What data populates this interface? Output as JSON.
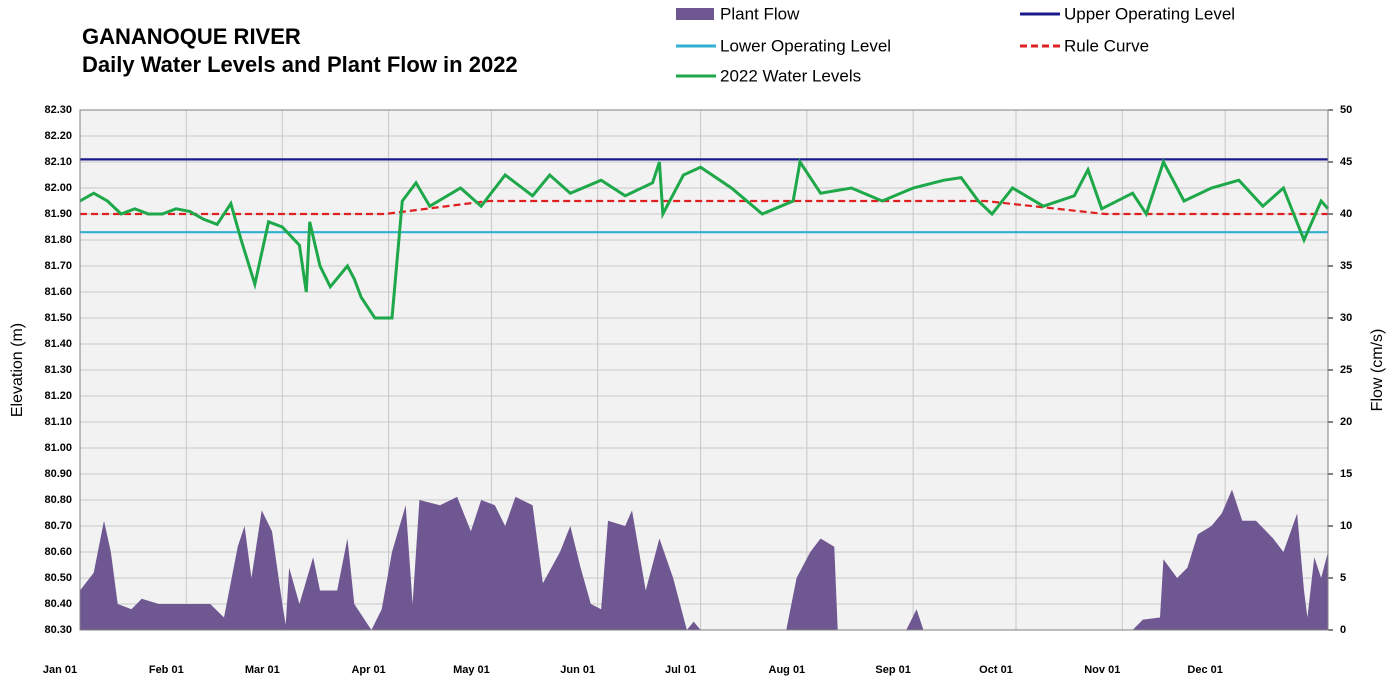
{
  "chart_data": {
    "type": "line",
    "title": "GANANOQUE RIVER",
    "subtitle": "Daily Water Levels and Plant Flow in 2022",
    "y_label": "Elevation (m)",
    "y2_label": "Flow (cm/s)",
    "xlim": [
      1,
      365
    ],
    "xticks": [
      {
        "value": 1,
        "label": "Jan 01"
      },
      {
        "value": 32,
        "label": "Feb 01"
      },
      {
        "value": 60,
        "label": "Mar 01"
      },
      {
        "value": 91,
        "label": "Apr 01"
      },
      {
        "value": 121,
        "label": "May 01"
      },
      {
        "value": 152,
        "label": "Jun 01"
      },
      {
        "value": 182,
        "label": "Jul 01"
      },
      {
        "value": 213,
        "label": "Aug 01"
      },
      {
        "value": 244,
        "label": "Sep 01"
      },
      {
        "value": 274,
        "label": "Oct 01"
      },
      {
        "value": 305,
        "label": "Nov 01"
      },
      {
        "value": 335,
        "label": "Dec 01"
      }
    ],
    "ylim": [
      80.3,
      82.3
    ],
    "yticks": [
      {
        "value": 80.3,
        "label": "80.30"
      },
      {
        "value": 80.4,
        "label": "80.40"
      },
      {
        "value": 80.5,
        "label": "80.50"
      },
      {
        "value": 80.6,
        "label": "80.60"
      },
      {
        "value": 80.7,
        "label": "80.70"
      },
      {
        "value": 80.8,
        "label": "80.80"
      },
      {
        "value": 80.9,
        "label": "80.90"
      },
      {
        "value": 81.0,
        "label": "81.00"
      },
      {
        "value": 81.1,
        "label": "81.10"
      },
      {
        "value": 81.2,
        "label": "81.20"
      },
      {
        "value": 81.3,
        "label": "81.30"
      },
      {
        "value": 81.4,
        "label": "81.40"
      },
      {
        "value": 81.5,
        "label": "81.50"
      },
      {
        "value": 81.6,
        "label": "81.60"
      },
      {
        "value": 81.7,
        "label": "81.70"
      },
      {
        "value": 81.8,
        "label": "81.80"
      },
      {
        "value": 81.9,
        "label": "81.90"
      },
      {
        "value": 82.0,
        "label": "82.00"
      },
      {
        "value": 82.1,
        "label": "82.10"
      },
      {
        "value": 82.2,
        "label": "82.20"
      },
      {
        "value": 82.3,
        "label": "82.30"
      }
    ],
    "y2lim": [
      0,
      50
    ],
    "y2ticks": [
      0,
      5,
      10,
      15,
      20,
      25,
      30,
      35,
      40,
      45,
      50
    ],
    "grid": true,
    "series": [
      {
        "name": "Plant Flow",
        "color": "#6f5792",
        "type": "area",
        "axis": "y2",
        "x": [
          1,
          5,
          8,
          10,
          12,
          16,
          19,
          24,
          39,
          43,
          47,
          49,
          51,
          54,
          57,
          60,
          61,
          62,
          65,
          69,
          71,
          76,
          79,
          81,
          86,
          89,
          92,
          96,
          98,
          100,
          106,
          111,
          115,
          118,
          122,
          125,
          128,
          133,
          136,
          141,
          144,
          147,
          150,
          153,
          155,
          160,
          162,
          166,
          170,
          174,
          178,
          180,
          182,
          207,
          210,
          214,
          217,
          221,
          222,
          242,
          245,
          247,
          308,
          311,
          316,
          317,
          321,
          324,
          327,
          331,
          334,
          337,
          340,
          344,
          349,
          352,
          356,
          358,
          359,
          361,
          363,
          365
        ],
        "values": [
          3.8,
          5.5,
          10.5,
          7.5,
          2.5,
          2,
          3,
          2.5,
          2.5,
          1.2,
          8,
          10,
          5,
          11.5,
          9.5,
          2.5,
          0.5,
          6,
          2.5,
          7,
          3.8,
          3.8,
          8.8,
          2.5,
          0,
          2,
          7.5,
          12,
          2.5,
          12.5,
          12,
          12.8,
          9.5,
          12.5,
          12,
          10,
          12.8,
          12,
          4.5,
          7.5,
          10,
          6,
          2.5,
          2,
          10.5,
          10,
          11.5,
          3.8,
          8.8,
          5,
          0,
          0.8,
          0,
          0,
          5,
          7.5,
          8.8,
          8,
          0,
          0,
          2,
          0,
          0,
          1,
          1.2,
          6.8,
          5,
          6,
          9.2,
          10,
          11.2,
          13.5,
          10.5,
          10.5,
          8.8,
          7.5,
          11.2,
          3.8,
          1.2,
          7,
          5,
          7.5
        ]
      },
      {
        "name": "Upper Operating Level",
        "color": "#1a1a8c",
        "x": [
          1,
          365
        ],
        "values": [
          82.11,
          82.11
        ]
      },
      {
        "name": "Lower Operating Level",
        "color": "#2fb0d0",
        "x": [
          1,
          365
        ],
        "values": [
          81.83,
          81.83
        ]
      },
      {
        "name": "Rule Curve",
        "color": "#e02020",
        "style": "dashed",
        "x": [
          1,
          90,
          120,
          265,
          300,
          365
        ],
        "values": [
          81.9,
          81.9,
          81.95,
          81.95,
          81.9,
          81.9
        ]
      },
      {
        "name": "2022 Water Levels",
        "color": "#1ea84a",
        "x": [
          1,
          5,
          9,
          13,
          17,
          21,
          25,
          29,
          33,
          37,
          41,
          45,
          48,
          52,
          56,
          60,
          65,
          67,
          68,
          71,
          74,
          79,
          81,
          83,
          87,
          92,
          95,
          99,
          103,
          112,
          118,
          125,
          133,
          138,
          144,
          153,
          160,
          168,
          170,
          171,
          177,
          182,
          191,
          200,
          209,
          211,
          217,
          226,
          235,
          244,
          253,
          258,
          263,
          267,
          273,
          282,
          291,
          295,
          299,
          308,
          312,
          317,
          323,
          331,
          339,
          346,
          352,
          358,
          363,
          365
        ],
        "values": [
          81.95,
          81.98,
          81.95,
          81.9,
          81.92,
          81.9,
          81.9,
          81.92,
          81.91,
          81.88,
          81.86,
          81.94,
          81.8,
          81.63,
          81.87,
          81.85,
          81.78,
          81.6,
          81.87,
          81.7,
          81.62,
          81.7,
          81.65,
          81.58,
          81.5,
          81.5,
          81.95,
          82.02,
          81.93,
          82.0,
          81.93,
          82.05,
          81.97,
          82.05,
          81.98,
          82.03,
          81.97,
          82.02,
          82.1,
          81.9,
          82.05,
          82.08,
          82.0,
          81.9,
          81.95,
          82.1,
          81.98,
          82.0,
          81.95,
          82.0,
          82.03,
          82.04,
          81.95,
          81.9,
          82.0,
          81.93,
          81.97,
          82.07,
          81.92,
          81.98,
          81.9,
          82.1,
          81.95,
          82.0,
          82.03,
          81.93,
          82.0,
          81.8,
          81.95,
          81.92
        ]
      }
    ]
  }
}
